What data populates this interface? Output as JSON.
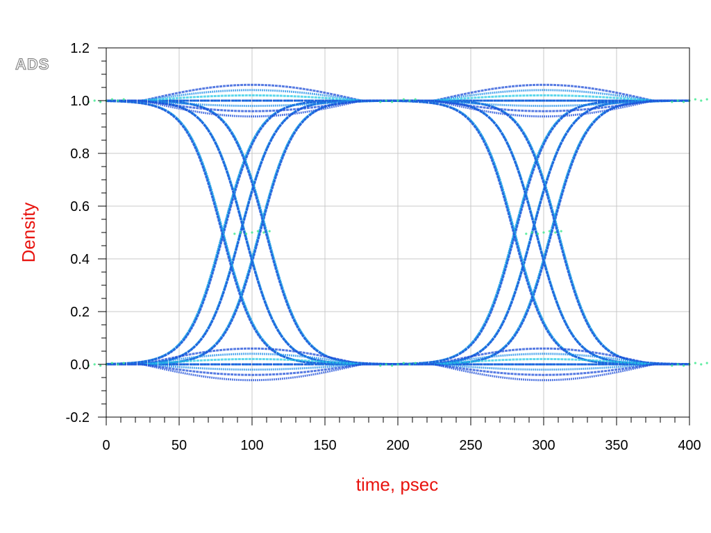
{
  "brand_mark": "ADS",
  "colors": {
    "title": "#e8130e",
    "grid": "#c8c8c8",
    "axis": "#000000",
    "trace_dark": "#1f4fd8",
    "trace_mid": "#1e8ee8",
    "trace_light": "#27c9e6",
    "trace_hot": "#39e88c"
  },
  "chart_data": {
    "type": "scatter",
    "subtype": "eye-diagram density plot",
    "xlabel": "time, psec",
    "ylabel": "Density",
    "xlim": [
      0,
      400
    ],
    "ylim": [
      -0.2,
      1.2
    ],
    "xticks": [
      0,
      50,
      100,
      150,
      200,
      250,
      300,
      350,
      400
    ],
    "xtick_labels": [
      "0",
      "50",
      "100",
      "150",
      "200",
      "250",
      "300",
      "350",
      "400"
    ],
    "yticks": [
      -0.2,
      0.0,
      0.2,
      0.4,
      0.6,
      0.8,
      1.0,
      1.2
    ],
    "ytick_labels": [
      "-0.2",
      "0.0",
      "0.2",
      "0.4",
      "0.6",
      "0.8",
      "1.0",
      "1.2"
    ],
    "grid": true,
    "legend": "none",
    "unit_interval_ps": 200,
    "crossing_times_ps": [
      100,
      300
    ],
    "crossing_level": 0.5,
    "high_level": 1.0,
    "low_level": 0.0,
    "traces": [
      {
        "kind": "rise",
        "center_ps": [
          80,
          280
        ],
        "band_ps": 12,
        "overshoot": [
          0.0,
          -0.02,
          0.0,
          0.03,
          0.06
        ]
      },
      {
        "kind": "rise",
        "center_ps": [
          92,
          292
        ],
        "band_ps": 6,
        "overshoot": [
          0.0,
          -0.02,
          0.0,
          0.03,
          0.06
        ]
      },
      {
        "kind": "rise",
        "center_ps": [
          105,
          305
        ],
        "band_ps": 10,
        "overshoot": [
          0.0,
          -0.02,
          0.0,
          0.03,
          0.06
        ]
      },
      {
        "kind": "fall",
        "center_ps": [
          80,
          280
        ],
        "band_ps": 12,
        "overshoot": [
          0.0,
          0.02,
          0.0,
          -0.03,
          -0.06
        ]
      },
      {
        "kind": "fall",
        "center_ps": [
          95,
          295
        ],
        "band_ps": 6,
        "overshoot": [
          0.0,
          0.02,
          0.0,
          -0.03,
          -0.06
        ]
      },
      {
        "kind": "fall",
        "center_ps": [
          110,
          310
        ],
        "band_ps": 10,
        "overshoot": [
          0.0,
          0.02,
          0.0,
          -0.03,
          -0.06
        ]
      },
      {
        "kind": "stay-high",
        "ripple": [
          0.06,
          0.04,
          0.02,
          -0.02,
          -0.04,
          -0.06
        ]
      },
      {
        "kind": "stay-low",
        "ripple": [
          0.06,
          0.04,
          0.02,
          -0.02,
          -0.04,
          -0.06
        ]
      }
    ]
  }
}
